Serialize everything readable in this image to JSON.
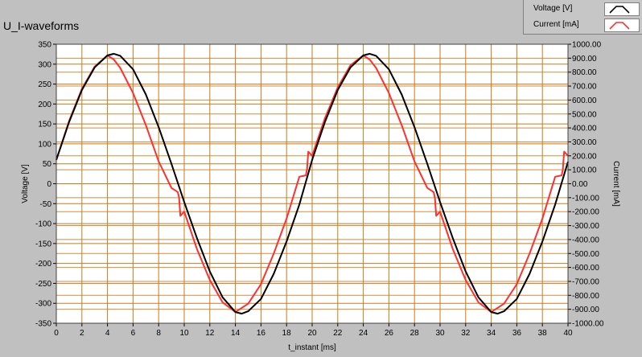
{
  "window": {
    "title": "U_I-waveforms"
  },
  "legend": [
    {
      "label": "Voltage [V]",
      "color": "#000000",
      "icon": "black-line-swatch-icon"
    },
    {
      "label": "Current [mA]",
      "color": "#ff3030",
      "icon": "red-line-swatch-icon"
    }
  ],
  "colors": {
    "plot_bg": "#ffffff",
    "grid": "#cc7a1a",
    "voltage": "#000000",
    "current": "#ff3030",
    "panel": "#c0c0c0"
  },
  "chart_data": {
    "type": "line",
    "title": "U_I-waveforms",
    "xlabel": "t_instant [ms]",
    "ylabel": "Voltage [V]",
    "y2label": "Current [mA]",
    "xlim": [
      0,
      40
    ],
    "ylim": [
      -350,
      350
    ],
    "y2lim": [
      -1000,
      1000
    ],
    "grid": true,
    "x_ticks": [
      0,
      2,
      4,
      6,
      8,
      10,
      12,
      14,
      16,
      18,
      20,
      22,
      24,
      26,
      28,
      30,
      32,
      34,
      36,
      38,
      40
    ],
    "y_ticks": [
      350,
      300,
      250,
      200,
      150,
      100,
      50,
      0,
      -50,
      -100,
      -150,
      -200,
      -250,
      -300,
      -350
    ],
    "y2_tick_labels": [
      "1000.00",
      "900.00",
      "800.00",
      "700.00",
      "600.00",
      "500.00",
      "400.00",
      "300.00",
      "200.00",
      "100.00",
      "0.00",
      "-100.00",
      "-200.00",
      "-300.00",
      "-400.00",
      "-500.00",
      "-600.00",
      "-700.00",
      "-800.00",
      "-900.00",
      "-1000.00"
    ],
    "series": [
      {
        "name": "Voltage [V]",
        "axis": "left",
        "x": [
          0,
          1,
          2,
          3,
          4,
          4.5,
          5,
          6,
          7,
          8,
          9,
          10,
          11,
          12,
          13,
          14,
          14.5,
          15,
          16,
          17,
          18,
          19,
          20,
          21,
          22,
          23,
          24,
          24.5,
          25,
          26,
          27,
          28,
          29,
          30,
          31,
          32,
          33,
          34,
          34.5,
          35,
          36,
          37,
          38,
          39,
          40
        ],
        "values": [
          60,
          155,
          235,
          292,
          322,
          326,
          321,
          287,
          224,
          142,
          50,
          -46,
          -137,
          -220,
          -285,
          -322,
          -326,
          -320,
          -289,
          -226,
          -145,
          -52,
          60,
          155,
          235,
          292,
          322,
          326,
          321,
          287,
          224,
          142,
          50,
          -46,
          -137,
          -220,
          -285,
          -322,
          -326,
          -320,
          -289,
          -226,
          -145,
          -52,
          55
        ]
      },
      {
        "name": "Current [mA]",
        "axis": "right",
        "x": [
          0,
          1,
          2,
          3,
          4,
          4.5,
          5,
          6,
          7,
          8,
          9,
          9.5,
          9.6,
          9.7,
          10,
          11,
          12,
          13,
          14,
          15,
          16,
          17,
          18,
          19,
          19.5,
          19.6,
          19.7,
          20,
          21,
          22,
          23,
          24,
          24.5,
          25,
          26,
          27,
          28,
          29,
          29.5,
          29.6,
          29.7,
          30,
          31,
          32,
          33,
          34,
          35,
          36,
          37,
          38,
          39,
          39.5,
          39.6,
          39.7,
          40
        ],
        "values": [
          170,
          450,
          680,
          840,
          920,
          890,
          830,
          650,
          420,
          160,
          -30,
          -60,
          -100,
          -230,
          -200,
          -470,
          -690,
          -850,
          -920,
          -860,
          -720,
          -500,
          -250,
          50,
          60,
          100,
          230,
          200,
          470,
          690,
          850,
          920,
          890,
          830,
          650,
          420,
          160,
          -30,
          -60,
          -100,
          -230,
          -200,
          -470,
          -690,
          -850,
          -920,
          -860,
          -720,
          -500,
          -250,
          50,
          60,
          100,
          230,
          200
        ]
      }
    ]
  }
}
